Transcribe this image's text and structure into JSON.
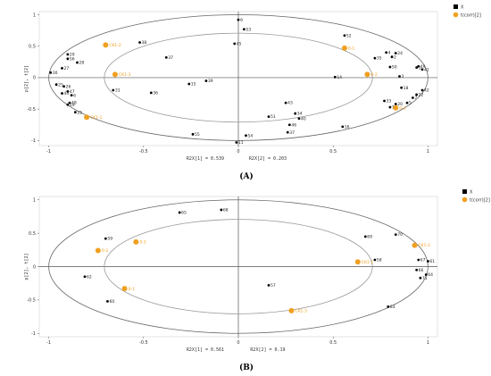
{
  "chart_data": [
    {
      "type": "scatter",
      "caption": "(A)",
      "xlabel": "R2X[1] = 0.539",
      "ylabel": "p[2], t[2]",
      "xlabel2": "R2X[2] = 0.203",
      "xlim": [
        -1.05,
        1.05
      ],
      "ylim": [
        -1.08,
        1.05
      ],
      "xticks": [
        -1,
        -0.5,
        0,
        0.5,
        1
      ],
      "xtick_labels": [
        "-1",
        "-0.5",
        "0",
        "0.5",
        "1"
      ],
      "yticks": [
        -1,
        -0.5,
        0,
        0.5,
        1
      ],
      "ytick_labels": [
        "-1",
        "-0.5",
        "0",
        "0.5",
        "1"
      ],
      "ellipses": [
        {
          "rx": 1.0,
          "ry": 1.0
        },
        {
          "rx": 0.707,
          "ry": 0.707
        }
      ],
      "legend": {
        "position": "top-right",
        "entries": [
          {
            "label": "X",
            "color": "#000000",
            "shape": "square"
          },
          {
            "label": "t(corr)[2]",
            "color": "#f0a020",
            "shape": "circle"
          }
        ]
      },
      "series": [
        {
          "name": "X",
          "color": "#000000",
          "points": [
            {
              "label": "9",
              "x": 0.0,
              "y": 0.92
            },
            {
              "label": "53",
              "x": 0.03,
              "y": 0.77
            },
            {
              "label": "52",
              "x": 0.56,
              "y": 0.67
            },
            {
              "label": "45",
              "x": -0.02,
              "y": 0.54
            },
            {
              "label": "38",
              "x": -0.52,
              "y": 0.56
            },
            {
              "label": "37",
              "x": -0.38,
              "y": 0.32
            },
            {
              "label": "29",
              "x": -0.9,
              "y": 0.37
            },
            {
              "label": "56",
              "x": -0.9,
              "y": 0.3
            },
            {
              "label": "28",
              "x": -0.85,
              "y": 0.24
            },
            {
              "label": "27",
              "x": -0.93,
              "y": 0.15
            },
            {
              "label": "30",
              "x": -0.99,
              "y": 0.08
            },
            {
              "label": "25",
              "x": -0.96,
              "y": -0.11
            },
            {
              "label": "26",
              "x": -0.92,
              "y": -0.14
            },
            {
              "label": "47",
              "x": -0.9,
              "y": -0.22
            },
            {
              "label": "6",
              "x": -0.88,
              "y": -0.28
            },
            {
              "label": "44",
              "x": -0.93,
              "y": -0.25
            },
            {
              "label": "48",
              "x": -0.89,
              "y": -0.4
            },
            {
              "label": "19",
              "x": -0.9,
              "y": -0.43
            },
            {
              "label": "25",
              "x": -0.86,
              "y": -0.55
            },
            {
              "label": "31",
              "x": -0.66,
              "y": -0.2
            },
            {
              "label": "36",
              "x": -0.46,
              "y": -0.24
            },
            {
              "label": "15",
              "x": -0.26,
              "y": -0.1
            },
            {
              "label": "39",
              "x": -0.17,
              "y": -0.05
            },
            {
              "label": "55",
              "x": -0.24,
              "y": -0.9
            },
            {
              "label": "11",
              "x": -0.01,
              "y": -1.03
            },
            {
              "label": "54",
              "x": 0.04,
              "y": -0.92
            },
            {
              "label": "14",
              "x": 0.51,
              "y": 0.01
            },
            {
              "label": "43",
              "x": 0.25,
              "y": -0.4
            },
            {
              "label": "51",
              "x": 0.16,
              "y": -0.62
            },
            {
              "label": "34",
              "x": 0.3,
              "y": -0.57
            },
            {
              "label": "40",
              "x": 0.32,
              "y": -0.65
            },
            {
              "label": "46",
              "x": 0.27,
              "y": -0.75
            },
            {
              "label": "37",
              "x": 0.26,
              "y": -0.87
            },
            {
              "label": "16",
              "x": 0.55,
              "y": -0.78
            },
            {
              "label": "4",
              "x": 0.78,
              "y": 0.4
            },
            {
              "label": "24",
              "x": 0.83,
              "y": 0.39
            },
            {
              "label": "2",
              "x": 0.81,
              "y": 0.33
            },
            {
              "label": "35",
              "x": 0.72,
              "y": 0.31
            },
            {
              "label": "50",
              "x": 0.8,
              "y": 0.17
            },
            {
              "label": "3",
              "x": 0.85,
              "y": 0.02
            },
            {
              "label": "49",
              "x": 0.95,
              "y": 0.18
            },
            {
              "label": "1",
              "x": 0.94,
              "y": 0.16
            },
            {
              "label": "41",
              "x": 0.97,
              "y": 0.13
            },
            {
              "label": "18",
              "x": 0.86,
              "y": -0.16
            },
            {
              "label": "42",
              "x": 0.97,
              "y": -0.2
            },
            {
              "label": "22",
              "x": 0.94,
              "y": -0.27
            },
            {
              "label": "7",
              "x": 0.92,
              "y": -0.32
            },
            {
              "label": "5",
              "x": 0.89,
              "y": -0.4
            },
            {
              "label": "20",
              "x": 0.83,
              "y": -0.42
            },
            {
              "label": "33",
              "x": 0.77,
              "y": -0.37
            },
            {
              "label": "13",
              "x": 0.8,
              "y": -0.47
            }
          ]
        },
        {
          "name": "t(corr)[2]",
          "color": "#f0a020",
          "points": [
            {
              "label": "CK1-2",
              "x": -0.7,
              "y": 0.52
            },
            {
              "label": "0-1",
              "x": 0.56,
              "y": 0.47
            },
            {
              "label": "CK1-3",
              "x": -0.65,
              "y": 0.05
            },
            {
              "label": "0-2",
              "x": 0.68,
              "y": 0.05
            },
            {
              "label": "0-3",
              "x": 0.83,
              "y": -0.48
            },
            {
              "label": "CK1-1",
              "x": -0.8,
              "y": -0.63
            }
          ]
        }
      ]
    },
    {
      "type": "scatter",
      "caption": "(B)",
      "xlabel": "R2X[1] = 0.561",
      "ylabel": "p[2], t[2]",
      "xlabel2": "R2X[2] = 0.19",
      "xlim": [
        -1.05,
        1.05
      ],
      "ylim": [
        -1.05,
        1.05
      ],
      "xticks": [
        -1,
        -0.5,
        0,
        0.5,
        1
      ],
      "xtick_labels": [
        "-1",
        "-0.5",
        "0",
        "0.5",
        "1"
      ],
      "yticks": [
        -1,
        -0.5,
        0,
        0.5,
        1
      ],
      "ytick_labels": [
        "-1",
        "-0.5",
        "0",
        "0.5",
        "1"
      ],
      "ellipses": [
        {
          "rx": 1.0,
          "ry": 1.0
        },
        {
          "rx": 0.707,
          "ry": 0.707
        }
      ],
      "legend": {
        "position": "top-right",
        "entries": [
          {
            "label": "X",
            "color": "#000000",
            "shape": "square"
          },
          {
            "label": "t(corr)[2]",
            "color": "#f0a020",
            "shape": "circle"
          }
        ]
      },
      "series": [
        {
          "name": "X",
          "color": "#000000",
          "points": [
            {
              "label": "68",
              "x": -0.09,
              "y": 0.85
            },
            {
              "label": "65",
              "x": -0.31,
              "y": 0.81
            },
            {
              "label": "59",
              "x": -0.7,
              "y": 0.42
            },
            {
              "label": "62",
              "x": -0.81,
              "y": -0.15
            },
            {
              "label": "60",
              "x": -0.69,
              "y": -0.52
            },
            {
              "label": "57",
              "x": 0.16,
              "y": -0.28
            },
            {
              "label": "58",
              "x": 0.72,
              "y": 0.1
            },
            {
              "label": "69",
              "x": 0.67,
              "y": 0.45
            },
            {
              "label": "70",
              "x": 0.83,
              "y": 0.48
            },
            {
              "label": "67",
              "x": 0.95,
              "y": 0.1
            },
            {
              "label": "61",
              "x": 1.0,
              "y": 0.08
            },
            {
              "label": "66",
              "x": 0.94,
              "y": -0.05
            },
            {
              "label": "64",
              "x": 0.99,
              "y": -0.12
            },
            {
              "label": "71",
              "x": 0.96,
              "y": -0.17
            },
            {
              "label": "63",
              "x": 0.79,
              "y": -0.6
            }
          ]
        },
        {
          "name": "t(corr)[2]",
          "color": "#f0a020",
          "points": [
            {
              "label": "0-3",
              "x": -0.54,
              "y": 0.37
            },
            {
              "label": "0-2",
              "x": -0.74,
              "y": 0.24
            },
            {
              "label": "0-1",
              "x": -0.6,
              "y": -0.33
            },
            {
              "label": "CK1-3",
              "x": 0.28,
              "y": -0.66
            },
            {
              "label": "CK1-1",
              "x": 0.63,
              "y": 0.07
            },
            {
              "label": "CK1-2",
              "x": 0.93,
              "y": 0.32
            }
          ]
        }
      ]
    }
  ]
}
